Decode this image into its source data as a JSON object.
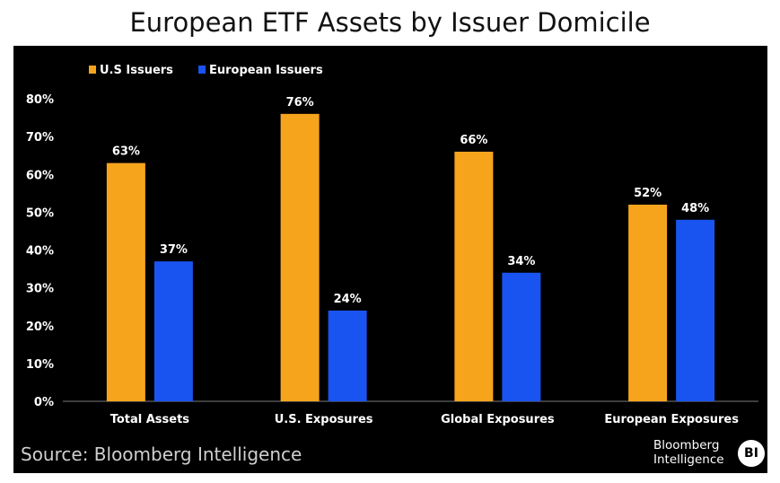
{
  "chart_data": {
    "type": "bar",
    "title": "European ETF Assets by Issuer Domicile",
    "categories": [
      "Total Assets",
      "U.S. Exposures",
      "Global Exposures",
      "European Exposures"
    ],
    "series": [
      {
        "name": "U.S Issuers",
        "color": "#f7a41d",
        "values": [
          63,
          76,
          66,
          52
        ],
        "labels": [
          "63%",
          "76%",
          "66%",
          "52%"
        ]
      },
      {
        "name": "European Issuers",
        "color": "#1a54f0",
        "values": [
          37,
          24,
          34,
          48
        ],
        "labels": [
          "37%",
          "24%",
          "34%",
          "48%"
        ]
      }
    ],
    "ylim": [
      0,
      80
    ],
    "yticks": [
      0,
      10,
      20,
      30,
      40,
      50,
      60,
      70,
      80
    ],
    "ytick_labels": [
      "0%",
      "10%",
      "20%",
      "30%",
      "40%",
      "50%",
      "60%",
      "70%",
      "80%"
    ],
    "xlabel": "",
    "ylabel": "",
    "legend": "top-left",
    "grid": false
  },
  "footer": {
    "source": "Source: Bloomberg Intelligence",
    "logo_line1": "Bloomberg",
    "logo_line2": "Intelligence",
    "logo_badge": "BI"
  }
}
